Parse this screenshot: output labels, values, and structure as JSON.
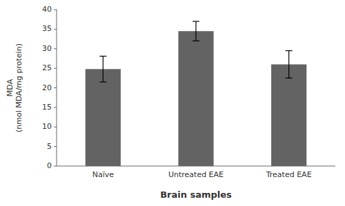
{
  "chart_data": {
    "type": "bar",
    "categories": [
      "Naïve",
      "Untreated EAE",
      "Treated EAE"
    ],
    "values": [
      24.8,
      34.5,
      26.0
    ],
    "errors": [
      3.3,
      2.5,
      3.5
    ],
    "color": "#636363",
    "xlabel": "Brain samples",
    "ylabel": "MDA\n(nmol MDA/mg protein)",
    "ylim": [
      0,
      40
    ],
    "yticks": [
      0,
      5,
      10,
      15,
      20,
      25,
      30,
      35,
      40
    ],
    "grid": false
  }
}
